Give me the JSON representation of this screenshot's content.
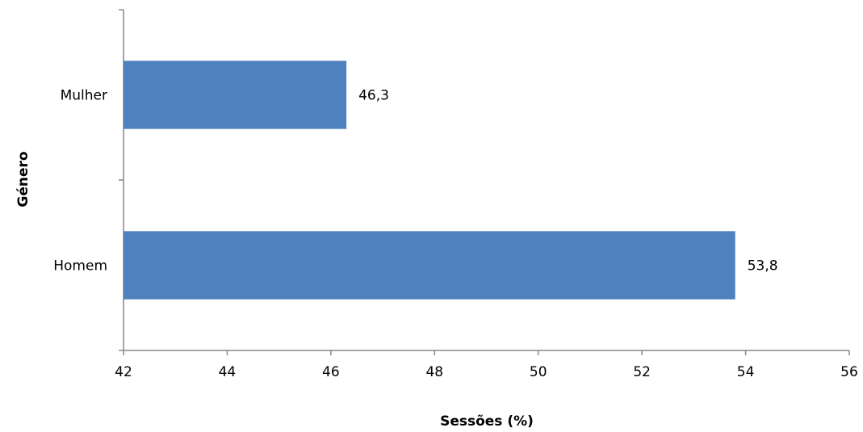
{
  "chart_data": {
    "type": "bar",
    "orientation": "horizontal",
    "categories": [
      "Mulher",
      "Homem"
    ],
    "values": [
      46.3,
      53.8
    ],
    "value_labels": [
      "46,3",
      "53,8"
    ],
    "xlabel": "Sessões (%)",
    "ylabel": "Género",
    "xlim": [
      42,
      56
    ],
    "xticks": [
      "42",
      "44",
      "46",
      "48",
      "50",
      "52",
      "54",
      "56"
    ],
    "grid": false,
    "legend": "none",
    "bar_color": "#4F81BD"
  }
}
